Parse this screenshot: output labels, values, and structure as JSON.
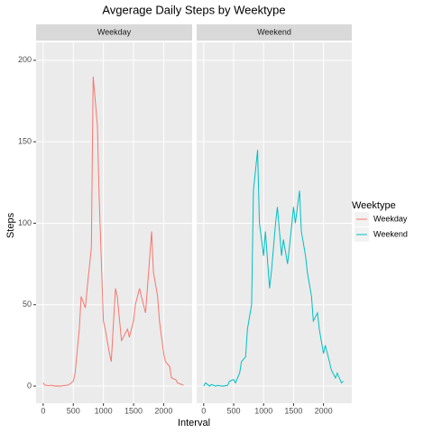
{
  "chart_data": {
    "type": "line",
    "facet": true,
    "title": "Avgerage Daily Steps by Weektype",
    "xlabel": "Interval",
    "ylabel": "Steps",
    "legend_title": "Weektype",
    "x": [
      0,
      30,
      100,
      130,
      200,
      230,
      300,
      330,
      400,
      430,
      500,
      530,
      600,
      630,
      700,
      730,
      800,
      830,
      900,
      930,
      1000,
      1030,
      1100,
      1130,
      1200,
      1230,
      1300,
      1330,
      1400,
      1430,
      1500,
      1530,
      1600,
      1630,
      1700,
      1730,
      1800,
      1830,
      1900,
      1930,
      2000,
      2030,
      2100,
      2130,
      2200,
      2230,
      2300,
      2330
    ],
    "series": [
      {
        "name": "Weekday",
        "color": "#f8766d",
        "values": [
          2,
          0.5,
          0.3,
          0.5,
          0,
          0.1,
          0,
          0.3,
          0.5,
          1,
          3,
          8,
          35,
          55,
          48,
          60,
          85,
          190,
          160,
          115,
          40,
          35,
          20,
          15,
          60,
          55,
          28,
          30,
          35,
          30,
          40,
          50,
          60,
          55,
          45,
          60,
          95,
          70,
          55,
          40,
          20,
          15,
          12,
          5,
          4,
          2,
          1,
          0.5
        ]
      },
      {
        "name": "Weekend",
        "color": "#00bfc4",
        "values": [
          0,
          2,
          0,
          1,
          0,
          0.5,
          0,
          0,
          0.5,
          3,
          4,
          2,
          8,
          15,
          18,
          35,
          50,
          120,
          145,
          100,
          80,
          95,
          60,
          70,
          100,
          110,
          80,
          90,
          75,
          85,
          110,
          100,
          120,
          95,
          80,
          70,
          55,
          40,
          45,
          35,
          20,
          25,
          15,
          10,
          5,
          8,
          2,
          3
        ]
      }
    ],
    "xlim": [
      -117.75,
      2472.75
    ],
    "xticks": [
      0,
      500,
      1000,
      1500,
      2000
    ],
    "ylim": [
      -10.5,
      211
    ],
    "yticks": [
      0,
      50,
      100,
      150,
      200
    ],
    "grid": true,
    "legend_position": "right"
  }
}
